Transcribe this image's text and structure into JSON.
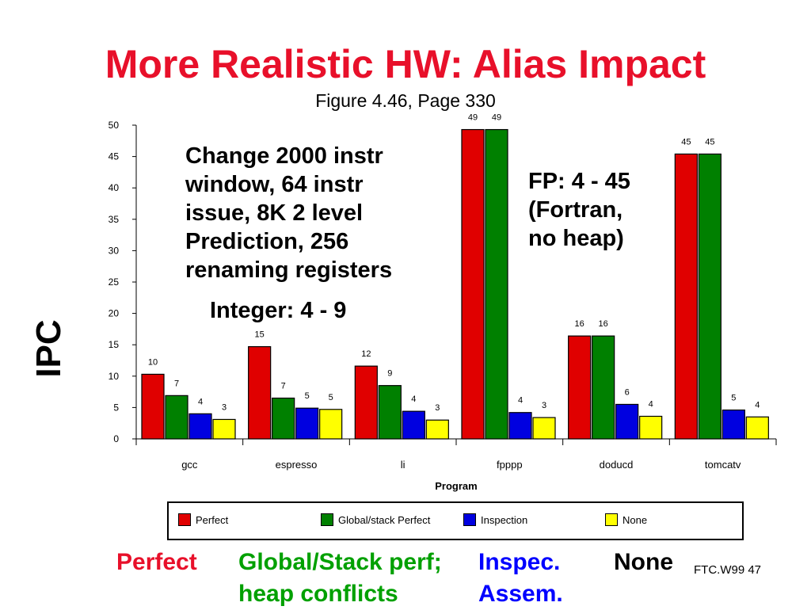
{
  "slide": {
    "title": "More Realistic HW: Alias Impact",
    "subtitle": "Figure 4.46, Page 330",
    "annotation_left": [
      "Change  2000 instr",
      "window, 64 instr",
      "issue, 8K 2 level",
      "Prediction, 256",
      "renaming registers"
    ],
    "annotation_integer": "Integer: 4 - 9",
    "annotation_fp": [
      "FP: 4 - 45",
      "(Fortran,",
      "no heap)"
    ],
    "bottom_labels": {
      "perfect": "Perfect",
      "global_line1": "Global/Stack perf;",
      "global_line2": "heap conflicts",
      "inspec_line1": "Inspec.",
      "inspec_line2": "Assem.",
      "none": "None"
    },
    "footer": "FTC.W99 47"
  },
  "chart_data": {
    "type": "bar",
    "xlabel": "Program",
    "ylabel": "IPC",
    "ylim": [
      0,
      50
    ],
    "yticks": [
      0,
      5,
      10,
      15,
      20,
      25,
      30,
      35,
      40,
      45,
      50
    ],
    "categories": [
      "gcc",
      "espresso",
      "li",
      "fpppp",
      "doducd",
      "tomcatv"
    ],
    "legend_position": "bottom",
    "series": [
      {
        "name": "Perfect",
        "color": "#e00000",
        "values": [
          10,
          15,
          12,
          49,
          16,
          45
        ]
      },
      {
        "name": "Global/stack Perfect",
        "color": "#008000",
        "values": [
          7,
          7,
          9,
          49,
          16,
          45
        ]
      },
      {
        "name": "Inspection",
        "color": "#0000e0",
        "values": [
          4,
          5,
          4,
          4,
          6,
          5
        ]
      },
      {
        "name": "None",
        "color": "#ffff00",
        "values": [
          3,
          5,
          3,
          3,
          4,
          4
        ]
      }
    ],
    "bar_heights_exact": [
      [
        10.3,
        14.7,
        11.6,
        49.3,
        16.4,
        45.4
      ],
      [
        6.9,
        6.5,
        8.5,
        49.3,
        16.4,
        45.4
      ],
      [
        4.0,
        4.9,
        4.4,
        4.2,
        5.5,
        4.6
      ],
      [
        3.1,
        4.7,
        3.0,
        3.4,
        3.6,
        3.5
      ]
    ]
  },
  "colors": {
    "title": "#e8102a",
    "perfect_text": "#e8102a",
    "global_text": "#00a000",
    "inspec_text": "#0000ff",
    "none_text": "#000000"
  }
}
